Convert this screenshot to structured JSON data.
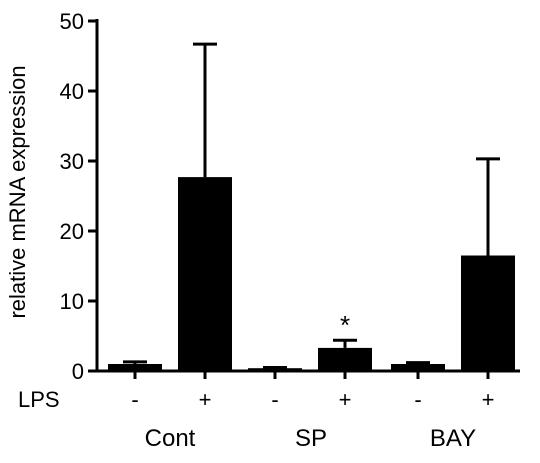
{
  "chart_data": {
    "type": "bar",
    "ylabel": "relative mRNA expression",
    "ylim": [
      0,
      50
    ],
    "yticks": [
      0,
      10,
      20,
      30,
      40,
      50
    ],
    "row_label": "LPS",
    "groups": [
      "Cont",
      "SP",
      "BAY"
    ],
    "bars": [
      {
        "group": "Cont",
        "lps": "-",
        "value": 1.0,
        "error": 0.3
      },
      {
        "group": "Cont",
        "lps": "+",
        "value": 27.7,
        "error": 19.0
      },
      {
        "group": "SP",
        "lps": "-",
        "value": 0.4,
        "error": 0.1
      },
      {
        "group": "SP",
        "lps": "+",
        "value": 3.3,
        "error": 1.1,
        "annotation": "*"
      },
      {
        "group": "BAY",
        "lps": "-",
        "value": 1.0,
        "error": 0.2
      },
      {
        "group": "BAY",
        "lps": "+",
        "value": 16.5,
        "error": 13.8
      }
    ],
    "colors": {
      "bar_fill": "#000000",
      "axis": "#000000"
    },
    "grid": false
  }
}
